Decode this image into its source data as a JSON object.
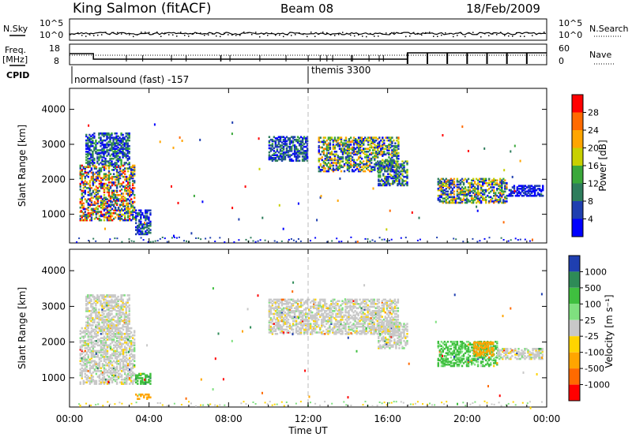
{
  "header": {
    "station": "King Salmon (fitACF)",
    "beam": "Beam 08",
    "date": "18/Feb/2009"
  },
  "strip": {
    "nsky_label": "N.Sky",
    "nsky_ticks": [
      "10^5",
      "10^0"
    ],
    "nsearch_label": "N.Search",
    "nsearch_ticks": [
      "10^5",
      "10^0"
    ],
    "freq_label": "Freq.",
    "freq_unit": "[MHz]",
    "freq_ticks": [
      "18",
      "8"
    ],
    "nave_label": "Nave",
    "nave_ticks": [
      "60",
      "0"
    ],
    "cpid_label": "CPID",
    "cpid_entries": [
      {
        "text": "normalsound (fast) -157",
        "start_hour": 0
      },
      {
        "text": "themis 3300",
        "start_hour": 12
      }
    ]
  },
  "chart_data": [
    {
      "type": "heatmap",
      "name": "power",
      "ylabel": "Slant Range [km]",
      "ylim": [
        180,
        4600
      ],
      "yticks": [
        1000,
        2000,
        3000,
        4000
      ],
      "xlim": [
        0,
        24
      ],
      "xticks": [
        "00:00",
        "04:00",
        "08:00",
        "12:00",
        "16:00",
        "20:00",
        "00:00"
      ],
      "colorbar": {
        "label": "Power [dB]",
        "ticks": [
          "4",
          "8",
          "12",
          "16",
          "20",
          "24",
          "28"
        ],
        "colors": [
          "#0000ff",
          "#1f3fb0",
          "#2e7d5c",
          "#3aa83a",
          "#c8d000",
          "#ffa500",
          "#ff6a00",
          "#ff0000"
        ]
      },
      "echo_regions": [
        {
          "t0": 0.5,
          "t1": 3.3,
          "r0": 800,
          "r1": 2400,
          "level": 0.75
        },
        {
          "t0": 0.8,
          "t1": 3.0,
          "r0": 2400,
          "r1": 3300,
          "level": 0.35
        },
        {
          "t0": 3.3,
          "t1": 4.1,
          "r0": 400,
          "r1": 1100,
          "level": 0.3
        },
        {
          "t0": 10.0,
          "t1": 12.0,
          "r0": 2500,
          "r1": 3200,
          "level": 0.3
        },
        {
          "t0": 12.5,
          "t1": 16.5,
          "r0": 2200,
          "r1": 3200,
          "level": 0.6
        },
        {
          "t0": 15.5,
          "t1": 17.0,
          "r0": 1800,
          "r1": 2500,
          "level": 0.45
        },
        {
          "t0": 18.5,
          "t1": 22.0,
          "r0": 1300,
          "r1": 2000,
          "level": 0.6
        },
        {
          "t0": 22.0,
          "t1": 23.8,
          "r0": 1500,
          "r1": 1800,
          "level": 0.2
        }
      ]
    },
    {
      "type": "heatmap",
      "name": "velocity",
      "ylabel": "Slant Range [km]",
      "ylim": [
        180,
        4600
      ],
      "yticks": [
        1000,
        2000,
        3000,
        4000
      ],
      "xlim": [
        0,
        24
      ],
      "xticks": [
        "00:00",
        "04:00",
        "08:00",
        "12:00",
        "16:00",
        "20:00",
        "00:00"
      ],
      "xlabel": "Time UT",
      "colorbar": {
        "label": "Velocity [m s⁻¹]",
        "ticks": [
          "1000",
          "500",
          "100",
          "25",
          "-25",
          "-100",
          "-500",
          "-1000"
        ],
        "colors": [
          "#1f3fb0",
          "#2e8b57",
          "#3fbf3f",
          "#7fe07f",
          "#c8c8c8",
          "#ffd400",
          "#ffa500",
          "#ff6a00",
          "#ff0000"
        ]
      },
      "echo_regions": [
        {
          "t0": 0.5,
          "t1": 3.3,
          "r0": 800,
          "r1": 2400,
          "v": 0
        },
        {
          "t0": 0.8,
          "t1": 3.0,
          "r0": 2400,
          "r1": 3300,
          "v": 0
        },
        {
          "t0": 3.3,
          "t1": 4.1,
          "r0": 800,
          "r1": 1100,
          "v": 80
        },
        {
          "t0": 3.3,
          "t1": 4.1,
          "r0": 380,
          "r1": 520,
          "v": -200
        },
        {
          "t0": 10.0,
          "t1": 16.5,
          "r0": 2200,
          "r1": 3200,
          "v": 0
        },
        {
          "t0": 15.5,
          "t1": 17.0,
          "r0": 1800,
          "r1": 2500,
          "v": 0
        },
        {
          "t0": 18.5,
          "t1": 21.5,
          "r0": 1300,
          "r1": 2000,
          "v": 60
        },
        {
          "t0": 20.3,
          "t1": 21.3,
          "r0": 1600,
          "r1": 2000,
          "v": -150
        },
        {
          "t0": 21.5,
          "t1": 23.8,
          "r0": 1500,
          "r1": 1800,
          "v": 0
        }
      ]
    }
  ]
}
